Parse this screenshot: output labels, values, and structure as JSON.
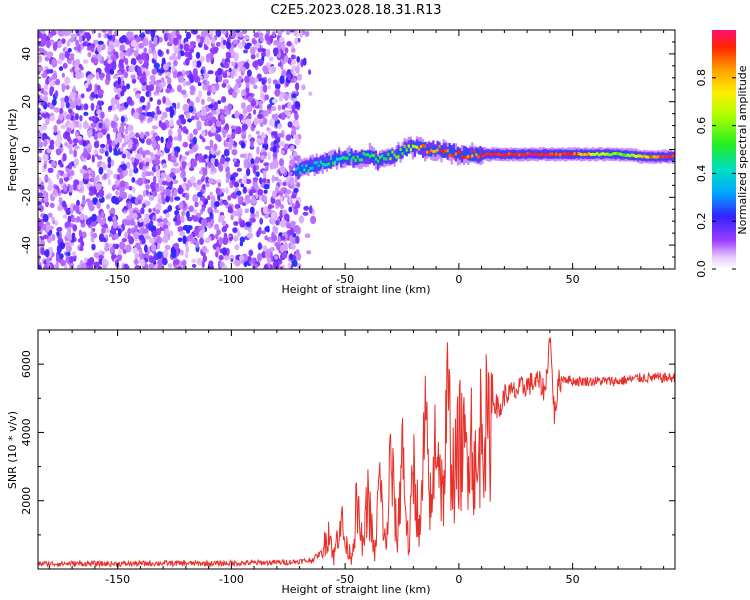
{
  "figure_title": "C2E5.2023.028.18.31.R13",
  "chart_data": [
    {
      "type": "heatmap",
      "title": "C2E5.2023.028.18.31.R13",
      "xlabel": "Height of straight line (km)",
      "ylabel": "Frequency (Hz)",
      "xlim": [
        -185,
        95
      ],
      "ylim": [
        -50,
        50
      ],
      "x_ticks": [
        -150,
        -100,
        -50,
        0,
        50
      ],
      "y_ticks": [
        -40,
        -20,
        0,
        20,
        40
      ],
      "noise_region": {
        "x_from": -185,
        "x_to": -70,
        "description_values": "scattered low amplitude 0.05-0.5"
      },
      "ridge": {
        "x": [
          -72,
          -65,
          -58,
          -50,
          -45,
          -40,
          -36,
          -32,
          -28,
          -24,
          -20,
          -15,
          -10,
          -5,
          0,
          5,
          10,
          20,
          30,
          40,
          50,
          60,
          70,
          80,
          90,
          95
        ],
        "freq_hz": [
          -9,
          -7,
          -5,
          -3,
          -4,
          -2,
          -5,
          -3,
          -2,
          0,
          1,
          0,
          0,
          -1,
          -2,
          -2,
          -2,
          -2,
          -2,
          -2,
          -2,
          -2,
          -2,
          -3,
          -3,
          -3
        ],
        "amplitude": [
          0.4,
          0.4,
          0.45,
          0.45,
          0.5,
          0.5,
          0.5,
          0.55,
          0.6,
          0.6,
          0.7,
          0.9,
          0.85,
          0.9,
          0.9,
          0.85,
          0.95,
          0.95,
          0.95,
          0.95,
          0.9,
          0.7,
          0.55,
          0.75,
          0.95,
          0.95
        ]
      },
      "colorbar": {
        "label": "Normalized spectral amplitude",
        "range": [
          0.0,
          1.0
        ],
        "ticks": [
          "0.0",
          "0.2",
          "0.4",
          "0.6",
          "0.8"
        ],
        "tick_values": [
          0,
          0.2,
          0.4,
          0.6,
          0.8
        ]
      }
    },
    {
      "type": "line",
      "xlabel": "Height of straight line (km)",
      "ylabel": "SNR (10 * v/v)",
      "xlim": [
        -185,
        95
      ],
      "ylim": [
        0,
        7000
      ],
      "x_ticks": [
        -150,
        -100,
        -50,
        0,
        50
      ],
      "y_ticks": [
        2000,
        4000,
        6000
      ],
      "series": [
        {
          "name": "SNR",
          "color": "#e8302a",
          "x": [
            -185,
            -170,
            -150,
            -130,
            -110,
            -90,
            -75,
            -65,
            -60,
            -57,
            -55,
            -52,
            -50,
            -47,
            -45,
            -42,
            -40,
            -37,
            -35,
            -32,
            -30,
            -27,
            -25,
            -22,
            -20,
            -17,
            -15,
            -12,
            -10,
            -7,
            -5,
            -2,
            0,
            3,
            5,
            8,
            10,
            13,
            15,
            18,
            20,
            25,
            30,
            35,
            38,
            40,
            42,
            44,
            46,
            50,
            55,
            60,
            70,
            80,
            90,
            95
          ],
          "y": [
            150,
            160,
            150,
            170,
            160,
            180,
            200,
            250,
            500,
            1200,
            300,
            1600,
            700,
            400,
            1800,
            600,
            2200,
            300,
            2600,
            500,
            3300,
            700,
            3800,
            400,
            3100,
            900,
            4100,
            1500,
            4400,
            2000,
            4700,
            2600,
            3700,
            3300,
            4300,
            2300,
            4700,
            3800,
            5000,
            4600,
            5100,
            5200,
            5400,
            5500,
            5200,
            6900,
            4500,
            5500,
            5600,
            5500,
            5500,
            5500,
            5500,
            5600,
            5600,
            5600
          ]
        }
      ]
    }
  ]
}
